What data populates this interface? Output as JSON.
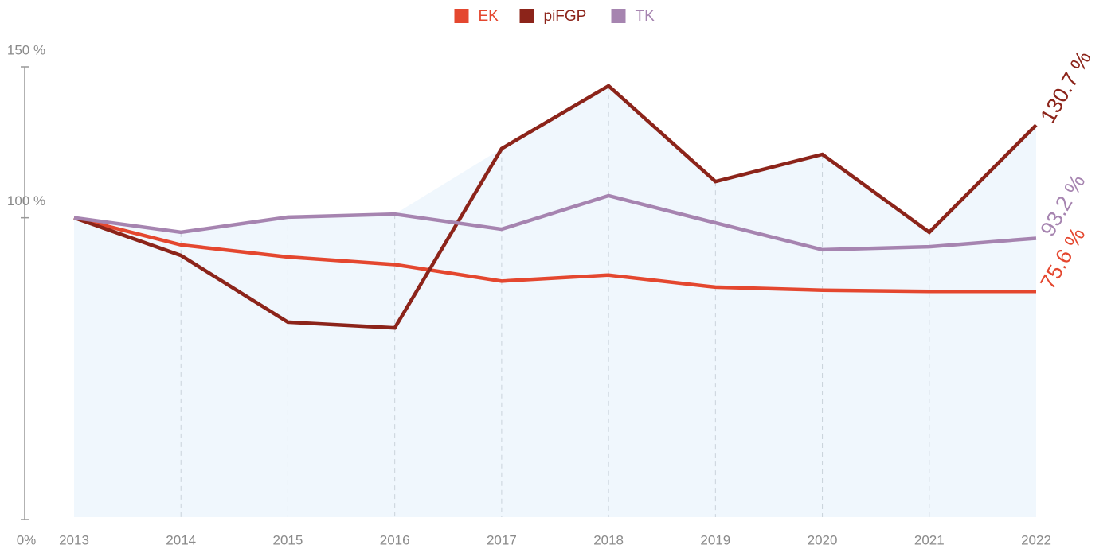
{
  "chart_data": {
    "type": "line",
    "categories": [
      "2013",
      "2014",
      "2015",
      "2016",
      "2017",
      "2018",
      "2019",
      "2020",
      "2021",
      "2022"
    ],
    "series": [
      {
        "name": "EK",
        "color": "#e4472f",
        "values": [
          100,
          91,
          87,
          84.5,
          79,
          81,
          77,
          76,
          75.6,
          75.6
        ],
        "value_labels": [
          null,
          null,
          null,
          null,
          null,
          null,
          null,
          null,
          null,
          "75.6 %"
        ]
      },
      {
        "name": "piFGP",
        "color": "#8c241a",
        "values": [
          100,
          87.5,
          65.4,
          63.5,
          122.9,
          143.7,
          112,
          121,
          95.2,
          130.7
        ],
        "value_labels": [
          null,
          null,
          null,
          null,
          null,
          null,
          null,
          null,
          null,
          "130.7 %"
        ]
      },
      {
        "name": "TK",
        "color": "#a684b0",
        "values": [
          100,
          95.2,
          100.2,
          101.2,
          96.2,
          107.3,
          98.3,
          89.4,
          90.4,
          93.2
        ],
        "value_labels": [
          null,
          null,
          null,
          null,
          null,
          null,
          null,
          null,
          null,
          "93.2 %"
        ]
      }
    ],
    "ylim": [
      0,
      150
    ],
    "yticks": [
      {
        "value": 0,
        "label": "0%"
      },
      {
        "value": 100,
        "label": "100 %"
      },
      {
        "value": 150,
        "label": "150 %"
      }
    ],
    "grid": true,
    "legend": "top"
  }
}
